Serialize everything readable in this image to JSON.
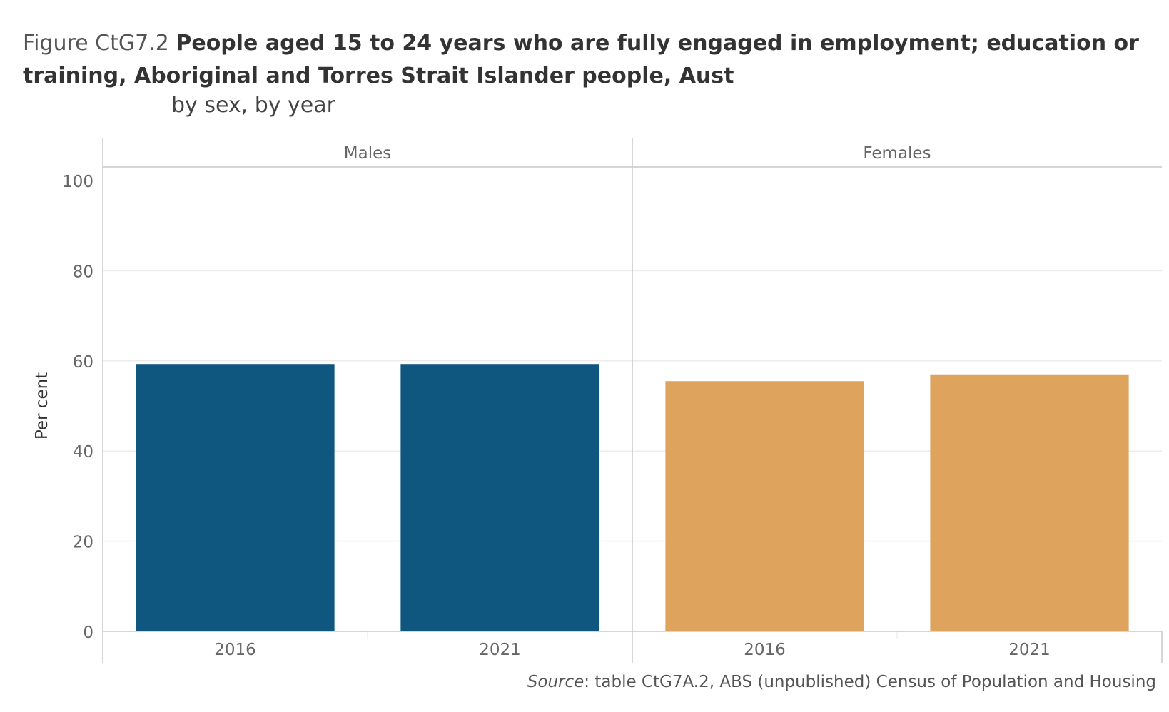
{
  "title": {
    "prefix": "Figure CtG7.2",
    "main": "People aged 15 to 24 years who are fully engaged in employment; education or training, Aboriginal and Torres Strait Islander people, Aust",
    "subtitle": "by sex, by year"
  },
  "source": {
    "label": "Source",
    "text": ": table CtG7A.2, ABS (unpublished) Census of Population and Housing"
  },
  "colors": {
    "males": "#10577f",
    "females": "#dea45e",
    "grid": "#ececec",
    "axis": "#c8c8c8",
    "tick_text": "#666666"
  },
  "chart_data": {
    "type": "bar",
    "ylabel": "Per cent",
    "ylim": [
      0,
      100
    ],
    "yticks": [
      0,
      20,
      40,
      60,
      80,
      100
    ],
    "grid": true,
    "panels": [
      {
        "name": "Males",
        "color_key": "males",
        "categories": [
          "2016",
          "2021"
        ],
        "values": [
          59.3,
          59.3
        ]
      },
      {
        "name": "Females",
        "color_key": "females",
        "categories": [
          "2016",
          "2021"
        ],
        "values": [
          55.5,
          57.0
        ]
      }
    ]
  }
}
